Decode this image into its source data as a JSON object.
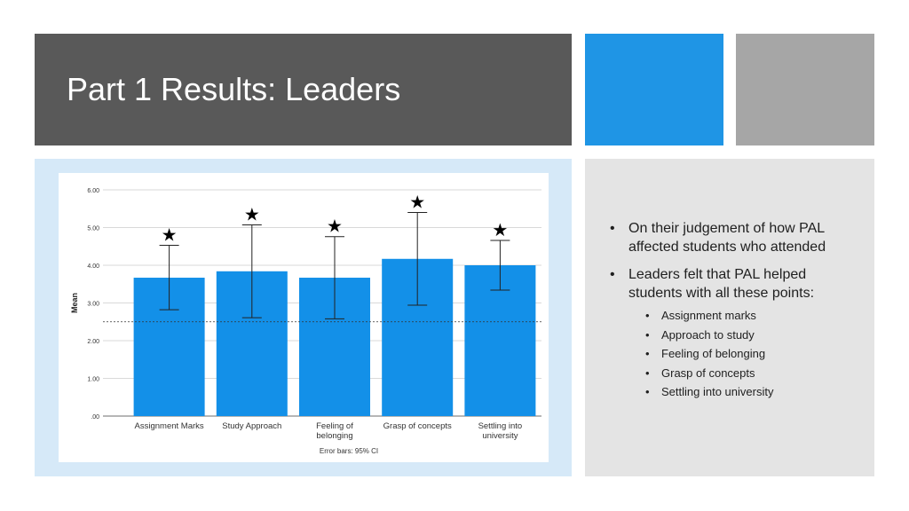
{
  "slide": {
    "title": "Part 1 Results: Leaders",
    "accent_colors": {
      "blue": "#1f95e5",
      "gray": "#a6a6a6"
    }
  },
  "bullets": {
    "items": [
      {
        "text": "On their judgement of how PAL affected students who attended"
      },
      {
        "text": "Leaders felt that PAL helped students with all these points:"
      }
    ],
    "sub_items": [
      "Assignment marks",
      "Approach to study",
      "Feeling of belonging",
      "Grasp of concepts",
      "Settling into university"
    ]
  },
  "chart_data": {
    "type": "bar",
    "categories": [
      [
        "Assignment Marks"
      ],
      [
        "Study Approach"
      ],
      [
        "Feeling of",
        "belonging"
      ],
      [
        "Grasp of concepts"
      ],
      [
        "Settling into",
        "university"
      ]
    ],
    "values": [
      3.67,
      3.84,
      3.67,
      4.17,
      4.0
    ],
    "ci_low": [
      2.82,
      2.61,
      2.58,
      2.94,
      3.34
    ],
    "ci_high": [
      4.53,
      5.07,
      4.76,
      5.4,
      4.66
    ],
    "significance_marker": "★",
    "ylabel": "Mean",
    "ylim": [
      0,
      6
    ],
    "yticks": [
      "6.00",
      "5.00",
      "4.00",
      "3.00",
      "2.00",
      "1.00",
      ".00"
    ],
    "reference_line": 2.5,
    "footnote": "Error bars: 95% CI",
    "bar_color": "#1390e8",
    "grid": true
  }
}
